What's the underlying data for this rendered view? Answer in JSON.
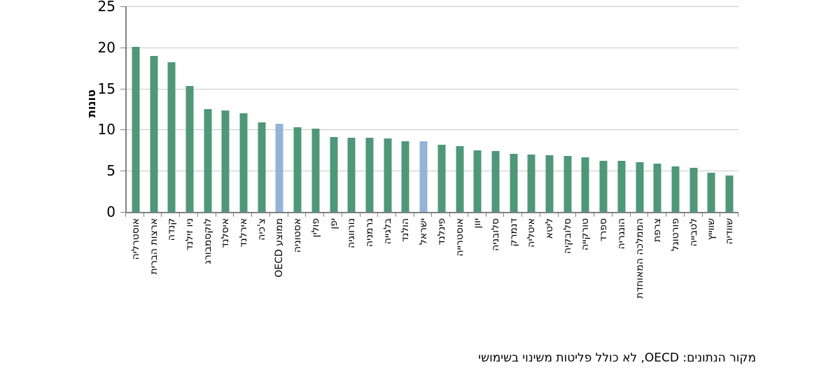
{
  "chart_data": {
    "type": "bar",
    "title": "",
    "ylabel": "טונות",
    "xlabel": "",
    "ylim": [
      0,
      25
    ],
    "yticks": [
      0,
      5,
      10,
      15,
      20,
      25
    ],
    "grid": true,
    "legend": null,
    "source_note": "מקור הנתונים: OECD, לא כולל פליטות משינוי בשימושי",
    "colors": {
      "bar": "#4f9779",
      "highlight": "#95b3d7",
      "gridline": "#c8c8c8",
      "axis": "#808080",
      "text": "#000000"
    },
    "bars": [
      {
        "label": "אוסטרליה",
        "value": 20.1,
        "highlight": false
      },
      {
        "label": "ארצות הברית",
        "value": 19.0,
        "highlight": false
      },
      {
        "label": "קנדה",
        "value": 18.2,
        "highlight": false
      },
      {
        "label": "ניו זילנד",
        "value": 15.3,
        "highlight": false
      },
      {
        "label": "לוקסמבורג",
        "value": 12.5,
        "highlight": false
      },
      {
        "label": "איסלנד",
        "value": 12.3,
        "highlight": false
      },
      {
        "label": "אירלנד",
        "value": 12.0,
        "highlight": false
      },
      {
        "label": "צ'כיה",
        "value": 10.9,
        "highlight": false
      },
      {
        "label": "ממוצע OECD",
        "value": 10.7,
        "highlight": true
      },
      {
        "label": "אסטוניה",
        "value": 10.3,
        "highlight": false
      },
      {
        "label": "פולין",
        "value": 10.1,
        "highlight": false
      },
      {
        "label": "יפן",
        "value": 9.1,
        "highlight": false
      },
      {
        "label": "נורווגיה",
        "value": 9.0,
        "highlight": false
      },
      {
        "label": "גרמניה",
        "value": 9.0,
        "highlight": false
      },
      {
        "label": "בלגייה",
        "value": 8.9,
        "highlight": false
      },
      {
        "label": "הולנד",
        "value": 8.6,
        "highlight": false
      },
      {
        "label": "ישראל",
        "value": 8.6,
        "highlight": true
      },
      {
        "label": "פינלנד",
        "value": 8.2,
        "highlight": false
      },
      {
        "label": "אוסטרייה",
        "value": 8.0,
        "highlight": false
      },
      {
        "label": "יוון",
        "value": 7.5,
        "highlight": false
      },
      {
        "label": "סלובניה",
        "value": 7.4,
        "highlight": false
      },
      {
        "label": "דנמרק",
        "value": 7.1,
        "highlight": false
      },
      {
        "label": "איטליה",
        "value": 7.0,
        "highlight": false
      },
      {
        "label": "ליטא",
        "value": 6.9,
        "highlight": false
      },
      {
        "label": "סלובקיה",
        "value": 6.8,
        "highlight": false
      },
      {
        "label": "טורקייה",
        "value": 6.6,
        "highlight": false
      },
      {
        "label": "ספרד",
        "value": 6.2,
        "highlight": false
      },
      {
        "label": "הונגריה",
        "value": 6.2,
        "highlight": false
      },
      {
        "label": "הממלכה המאוחדת",
        "value": 6.0,
        "highlight": false
      },
      {
        "label": "צרפת",
        "value": 5.9,
        "highlight": false
      },
      {
        "label": "פורטוגל",
        "value": 5.5,
        "highlight": false
      },
      {
        "label": "לטבייה",
        "value": 5.4,
        "highlight": false
      },
      {
        "label": "שווייץ",
        "value": 4.8,
        "highlight": false
      },
      {
        "label": "שוודיה",
        "value": 4.4,
        "highlight": false
      }
    ]
  }
}
